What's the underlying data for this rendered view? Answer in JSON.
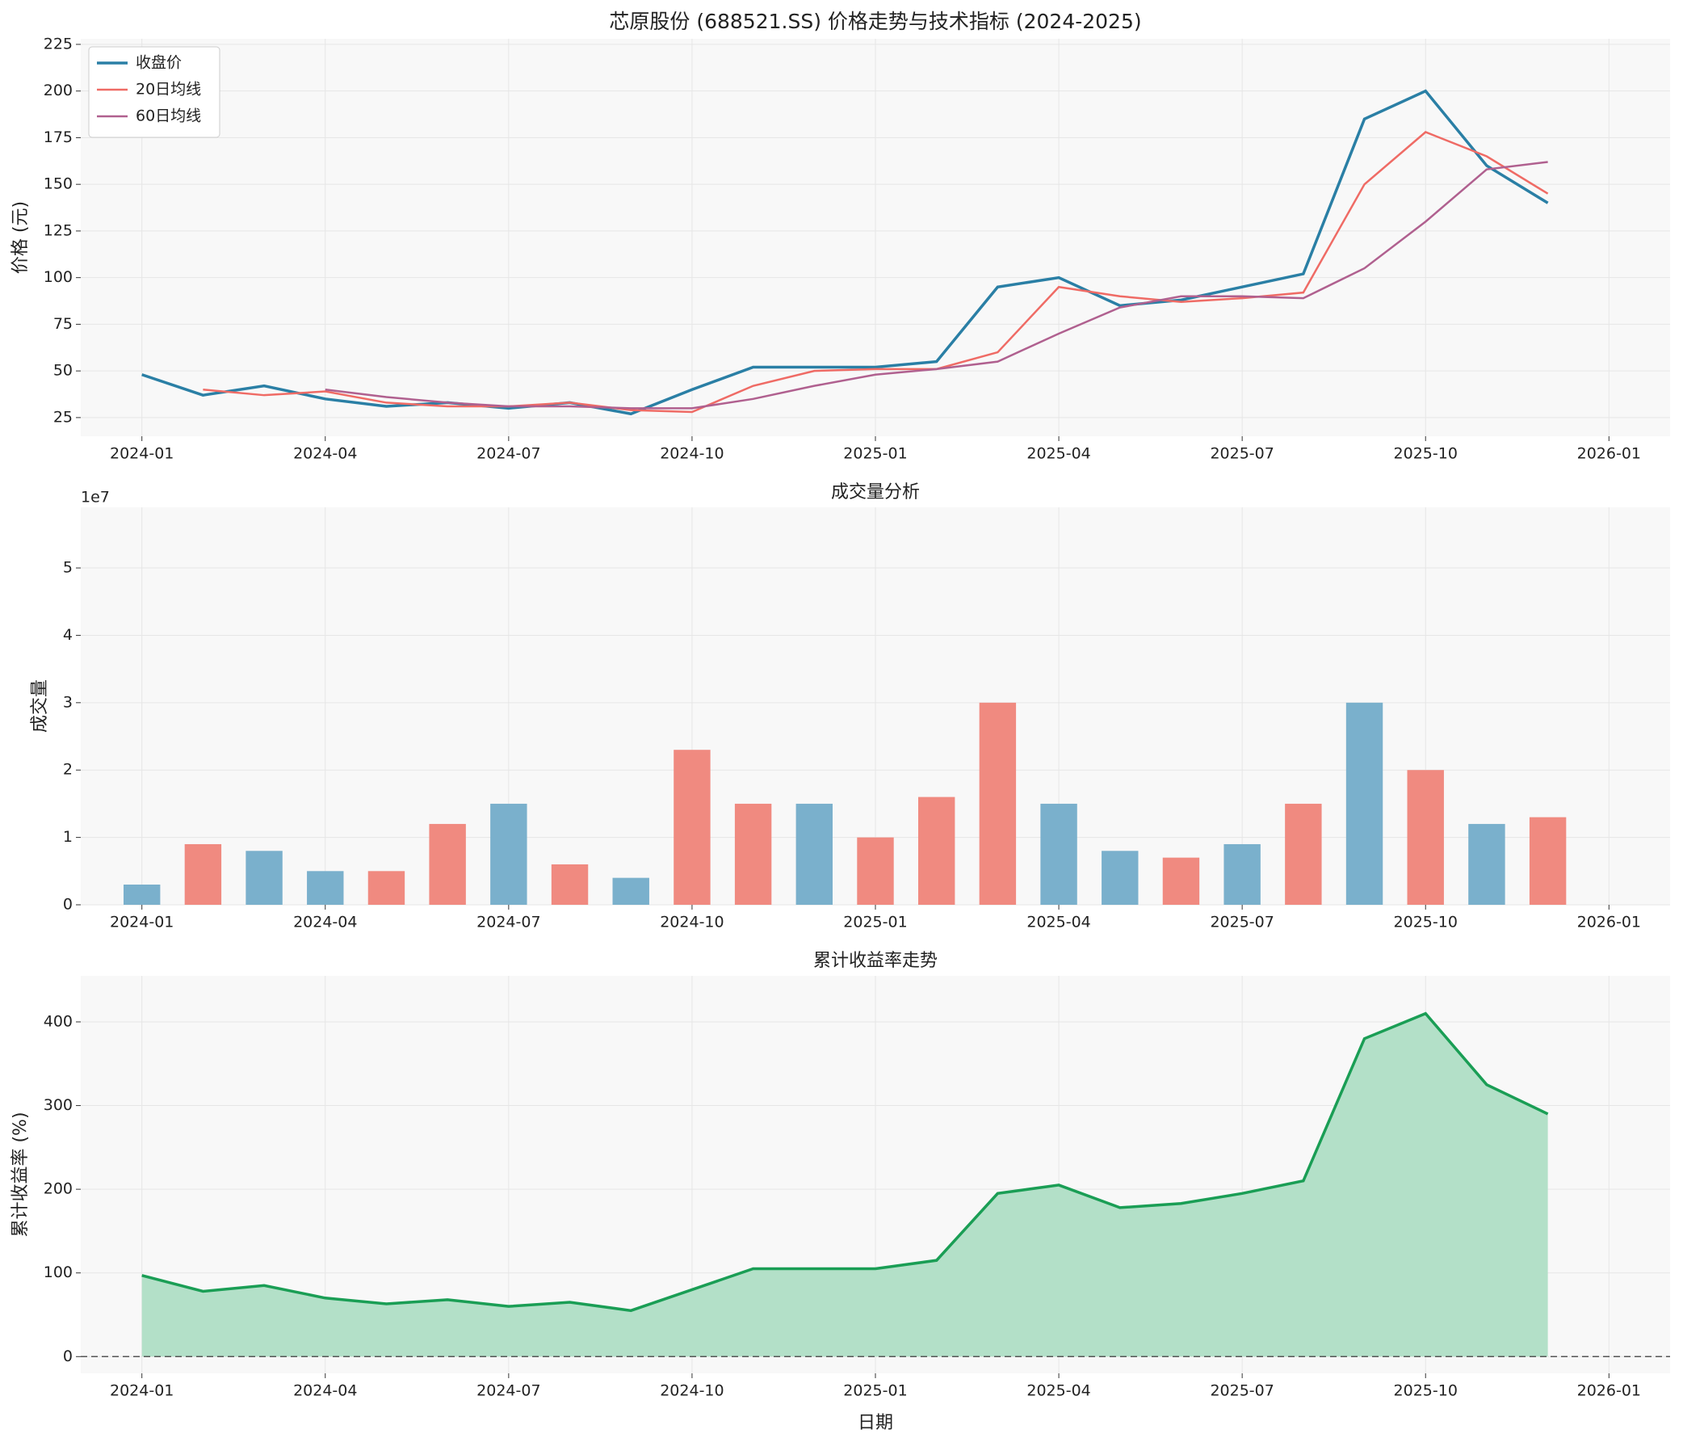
{
  "chart_data": [
    {
      "type": "line",
      "title": "芯原股份 (688521.SS) 价格走势与技术指标 (2024-2025)",
      "y_label": "价格 (元)",
      "x": [
        "2024-01",
        "2024-02",
        "2024-03",
        "2024-04",
        "2024-05",
        "2024-06",
        "2024-07",
        "2024-08",
        "2024-09",
        "2024-10",
        "2024-11",
        "2024-12",
        "2025-01",
        "2025-02",
        "2025-03",
        "2025-04",
        "2025-05",
        "2025-06",
        "2025-07",
        "2025-08",
        "2025-09",
        "2025-10",
        "2025-11",
        "2025-12"
      ],
      "series": [
        {
          "name": "收盘价",
          "color": "#2a7fa5",
          "width": 3.5,
          "values": [
            48,
            37,
            42,
            35,
            31,
            33,
            30,
            33,
            27,
            40,
            52,
            52,
            52,
            55,
            95,
            100,
            85,
            88,
            95,
            102,
            185,
            200,
            160,
            140
          ]
        },
        {
          "name": "20日均线",
          "color": "#ef6b65",
          "width": 2.5,
          "values": [
            null,
            40,
            37,
            39,
            33,
            31,
            31,
            33,
            29,
            28,
            42,
            50,
            51,
            51,
            60,
            95,
            90,
            87,
            89,
            92,
            150,
            178,
            165,
            145
          ]
        },
        {
          "name": "60日均线",
          "color": "#b0608f",
          "width": 2.5,
          "values": [
            null,
            null,
            null,
            40,
            36,
            33,
            31,
            31,
            30,
            30,
            35,
            42,
            48,
            51,
            55,
            70,
            84,
            90,
            90,
            89,
            105,
            130,
            158,
            162
          ]
        }
      ],
      "xlim": [
        "2023-12",
        "2026-02"
      ],
      "xticks": [
        "2024-01",
        "2024-04",
        "2024-07",
        "2024-10",
        "2025-01",
        "2025-04",
        "2025-07",
        "2025-10",
        "2026-01"
      ],
      "ylim": [
        15,
        228
      ],
      "yticks": [
        25,
        50,
        75,
        100,
        125,
        150,
        175,
        200,
        225
      ],
      "grid": true,
      "legend": "upper left"
    },
    {
      "type": "bar",
      "title": "成交量分析",
      "y_label": "成交量",
      "offset_label": "1e7",
      "x": [
        "2024-01",
        "2024-02",
        "2024-03",
        "2024-04",
        "2024-05",
        "2024-06",
        "2024-07",
        "2024-08",
        "2024-09",
        "2024-10",
        "2024-11",
        "2024-12",
        "2025-01",
        "2025-02",
        "2025-03",
        "2025-04",
        "2025-05",
        "2025-06",
        "2025-07",
        "2025-08",
        "2025-09",
        "2025-10",
        "2025-11",
        "2025-12"
      ],
      "values": [
        3000000,
        9000000,
        8000000,
        5000000,
        5000000,
        12000000,
        15000000,
        6000000,
        4000000,
        23000000,
        15000000,
        15000000,
        10000000,
        16000000,
        30000000,
        15000000,
        8000000,
        7000000,
        9000000,
        15000000,
        30000000,
        20000000,
        12000000,
        13000000
      ],
      "colors": [
        "#7ab0cc",
        "#f08a80",
        "#7ab0cc",
        "#7ab0cc",
        "#f08a80",
        "#f08a80",
        "#7ab0cc",
        "#f08a80",
        "#7ab0cc",
        "#f08a80",
        "#f08a80",
        "#7ab0cc",
        "#f08a80",
        "#f08a80",
        "#f08a80",
        "#7ab0cc",
        "#7ab0cc",
        "#f08a80",
        "#7ab0cc",
        "#f08a80",
        "#7ab0cc",
        "#f08a80",
        "#7ab0cc",
        "#f08a80"
      ],
      "xlim": [
        "2023-12",
        "2026-02"
      ],
      "xticks": [
        "2024-01",
        "2024-04",
        "2024-07",
        "2024-10",
        "2025-01",
        "2025-04",
        "2025-07",
        "2025-10",
        "2026-01"
      ],
      "ylim": [
        0,
        59000000
      ],
      "yticks": [
        {
          "value": 0,
          "label": "0"
        },
        {
          "value": 10000000,
          "label": "1"
        },
        {
          "value": 20000000,
          "label": "2"
        },
        {
          "value": 30000000,
          "label": "3"
        },
        {
          "value": 40000000,
          "label": "4"
        },
        {
          "value": 50000000,
          "label": "5"
        }
      ],
      "grid": true
    },
    {
      "type": "area",
      "title": "累计收益率走势",
      "y_label": "累计收益率 (%)",
      "x_label": "日期",
      "color": "#1a9e55",
      "fill": "#b3e0c8",
      "x": [
        "2024-01",
        "2024-02",
        "2024-03",
        "2024-04",
        "2024-05",
        "2024-06",
        "2024-07",
        "2024-08",
        "2024-09",
        "2024-10",
        "2024-11",
        "2024-12",
        "2025-01",
        "2025-02",
        "2025-03",
        "2025-04",
        "2025-05",
        "2025-06",
        "2025-07",
        "2025-08",
        "2025-09",
        "2025-10",
        "2025-11",
        "2025-12"
      ],
      "values": [
        97,
        78,
        85,
        70,
        63,
        68,
        60,
        65,
        55,
        80,
        105,
        105,
        105,
        115,
        195,
        205,
        178,
        183,
        195,
        210,
        380,
        410,
        325,
        290
      ],
      "xlim": [
        "2023-12",
        "2026-02"
      ],
      "xticks": [
        "2024-01",
        "2024-04",
        "2024-07",
        "2024-10",
        "2025-01",
        "2025-04",
        "2025-07",
        "2025-10",
        "2026-01"
      ],
      "ylim": [
        -20,
        455
      ],
      "yticks": [
        0,
        100,
        200,
        300,
        400
      ],
      "grid": true,
      "zero_line": true
    }
  ]
}
